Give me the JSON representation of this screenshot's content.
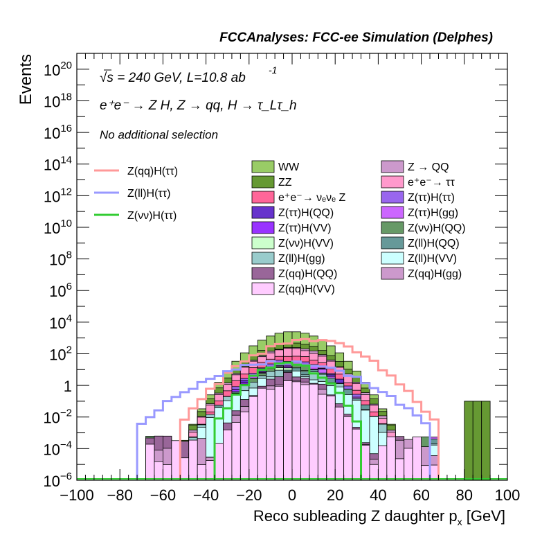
{
  "chart_data": {
    "type": "histogram",
    "title": "FCCAnalyses: FCC-ee Simulation (Delphes)",
    "xlabel": "Reco subleading Z daughter p",
    "xlabel_sub": "x",
    "xlabel_unit": " [GeV]",
    "ylabel": "Events",
    "xlim": [
      -100,
      100
    ],
    "ylim_log10": [
      -6,
      21
    ],
    "y_scale": "log",
    "x_ticks": [
      "−100",
      "−80",
      "−60",
      "−40",
      "−20",
      "0",
      "20",
      "40",
      "60",
      "80",
      "100"
    ],
    "y_ticks": [
      {
        "exp": 20,
        "base": "10",
        "sup": "20"
      },
      {
        "exp": 18,
        "base": "10",
        "sup": "18"
      },
      {
        "exp": 16,
        "base": "10",
        "sup": "16"
      },
      {
        "exp": 14,
        "base": "10",
        "sup": "14"
      },
      {
        "exp": 12,
        "base": "10",
        "sup": "12"
      },
      {
        "exp": 10,
        "base": "10",
        "sup": "10"
      },
      {
        "exp": 8,
        "base": "10",
        "sup": "8"
      },
      {
        "exp": 6,
        "base": "10",
        "sup": "6"
      },
      {
        "exp": 4,
        "base": "10",
        "sup": "4"
      },
      {
        "exp": 2,
        "base": "10",
        "sup": "2"
      },
      {
        "exp": 0,
        "base": "1",
        "sup": ""
      },
      {
        "exp": -2,
        "base": "10",
        "sup": "−2"
      },
      {
        "exp": -4,
        "base": "10",
        "sup": "−4"
      },
      {
        "exp": -6,
        "base": "10",
        "sup": "−6"
      }
    ],
    "annotations": {
      "energy": "√s = 240 GeV, L=10.8 ab",
      "energy_sup": "-1",
      "process": "e⁺e⁻ → Z H, Z → qq, H → τ_Lτ_h",
      "selection": "No additional selection"
    },
    "bin_width": 4,
    "bin_edges_range": [
      -80,
      92
    ],
    "stacked_backgrounds": [
      {
        "name": "WW",
        "color": "#99cc66",
        "log10_peak": 3.4,
        "width": 34
      },
      {
        "name": "ZZ",
        "color": "#669933",
        "log10_peak": 2.7,
        "width": 36
      },
      {
        "name": "Z → QQ",
        "color": "#cc99cc",
        "log10_peak": 2.4,
        "width": 36
      },
      {
        "name": "e⁺e⁻→ ττ",
        "color": "#ff99cc",
        "log10_peak": 2.3,
        "width": 36
      },
      {
        "name": "e⁺e⁻→ νₑνₑ Z",
        "color": "#ff6699",
        "log10_peak": 1.9,
        "width": 36
      },
      {
        "name": "Z(ττ)H(ττ)",
        "color": "#9966ee",
        "log10_peak": 1.6,
        "width": 36
      },
      {
        "name": "Z(ττ)H(QQ)",
        "color": "#6633cc",
        "log10_peak": 1.5,
        "width": 36
      },
      {
        "name": "Z(ττ)H(gg)",
        "color": "#cc66ff",
        "log10_peak": 1.4,
        "width": 36
      },
      {
        "name": "Z(ττ)H(VV)",
        "color": "#9933ff",
        "log10_peak": 1.3,
        "width": 36
      },
      {
        "name": "Z(νν)H(QQ)",
        "color": "#669966",
        "log10_peak": 1.2,
        "width": 36
      },
      {
        "name": "Z(νν)H(VV)",
        "color": "#ccffcc",
        "log10_peak": 1.1,
        "width": 36
      },
      {
        "name": "Z(ll)H(QQ)",
        "color": "#669999",
        "log10_peak": 1.0,
        "width": 40
      },
      {
        "name": "Z(ll)H(gg)",
        "color": "#99cccc",
        "log10_peak": 0.9,
        "width": 40
      },
      {
        "name": "Z(ll)H(VV)",
        "color": "#ccffff",
        "log10_peak": 0.7,
        "width": 40
      },
      {
        "name": "Z(qq)H(QQ)",
        "color": "#996699",
        "log10_peak": 0.6,
        "width": 30
      },
      {
        "name": "Z(qq)H(gg)",
        "color": "#cc99cc",
        "log10_peak": 0.4,
        "width": 30
      },
      {
        "name": "Z(qq)H(VV)",
        "color": "#ffccff",
        "log10_peak": 0.3,
        "width": 30
      }
    ],
    "signals": [
      {
        "name": "Z(qq)H(ττ)",
        "color": "#ff9999",
        "log10_peak": 2.85,
        "range": [
          -52,
          68
        ]
      },
      {
        "name": "Z(ll)H(ττ)",
        "color": "#9999ff",
        "log10_peak": 1.45,
        "range": [
          -72,
          64
        ]
      },
      {
        "name": "Z(νν)H(ττ)",
        "color": "#33cc33",
        "log10_peak": 1.35,
        "range": [
          -36,
          32
        ]
      }
    ],
    "legend_left": [
      {
        "label": "Z(qq)H(ττ)",
        "color": "#ff9999"
      },
      {
        "label": "Z(ll)H(ττ)",
        "color": "#9999ff"
      },
      {
        "label": "Z(νν)H(ττ)",
        "color": "#33cc33"
      }
    ],
    "legend_col1": [
      {
        "label": "WW",
        "color": "#99cc66"
      },
      {
        "label": "ZZ",
        "color": "#669933"
      },
      {
        "label": "e⁺e⁻→ νₑνₑ Z",
        "color": "#ff6699"
      },
      {
        "label": "Z(ττ)H(QQ)",
        "color": "#6633cc"
      },
      {
        "label": "Z(ττ)H(VV)",
        "color": "#9933ff"
      },
      {
        "label": "Z(νν)H(VV)",
        "color": "#ccffcc"
      },
      {
        "label": "Z(ll)H(gg)",
        "color": "#99cccc"
      },
      {
        "label": "Z(qq)H(QQ)",
        "color": "#996699"
      },
      {
        "label": "Z(qq)H(VV)",
        "color": "#ffccff"
      }
    ],
    "legend_col2": [
      {
        "label": "Z → QQ",
        "color": "#cc99cc"
      },
      {
        "label": "e⁺e⁻→ ττ",
        "color": "#ff99cc"
      },
      {
        "label": "Z(ττ)H(ττ)",
        "color": "#9966ee"
      },
      {
        "label": "Z(ττ)H(gg)",
        "color": "#cc66ff"
      },
      {
        "label": "Z(νν)H(QQ)",
        "color": "#669966"
      },
      {
        "label": "Z(ll)H(QQ)",
        "color": "#669999"
      },
      {
        "label": "Z(ll)H(VV)",
        "color": "#ccffff"
      },
      {
        "label": "Z(qq)H(gg)",
        "color": "#cc99cc"
      }
    ],
    "legend_placement": "top",
    "grid": false
  }
}
